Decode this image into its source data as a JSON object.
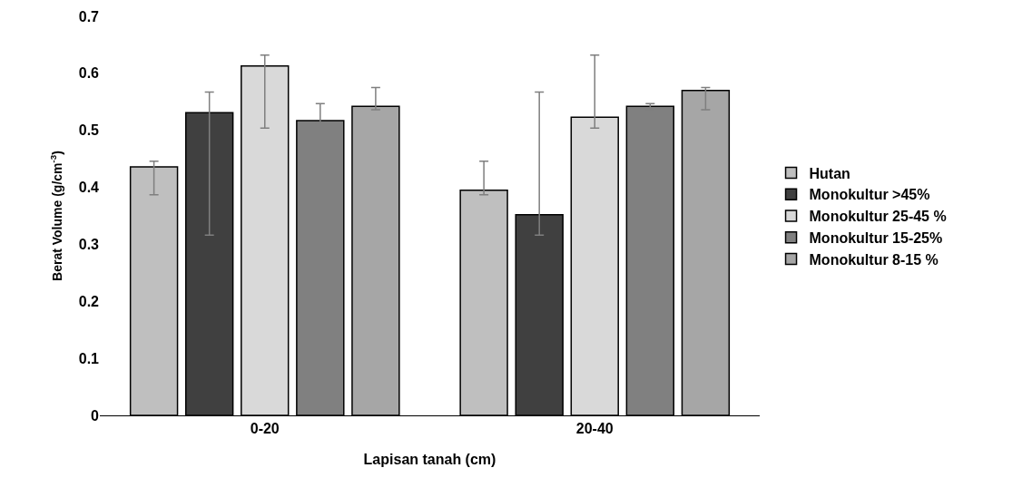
{
  "chart_data": {
    "type": "bar",
    "xlabel": "Lapisan tanah (cm)",
    "ylabel": "Berat Volume (g/cm$^{-3}$)",
    "categories": [
      "0-20",
      "20-40"
    ],
    "series": [
      {
        "name": "Hutan",
        "color": "#bfbfbf",
        "values": [
          0.436,
          0.395
        ],
        "errors": [
          [
            0.387,
            0.446
          ],
          [
            0.387,
            0.446
          ]
        ]
      },
      {
        "name": "Monokultur >45%",
        "color": "#404040",
        "values": [
          0.531,
          0.352
        ],
        "errors": [
          [
            0.316,
            0.567
          ],
          [
            0.316,
            0.567
          ]
        ]
      },
      {
        "name": "Monokultur 25-45 %",
        "color": "#d9d9d9",
        "values": [
          0.613,
          0.523
        ],
        "errors": [
          [
            0.504,
            0.632
          ],
          [
            0.504,
            0.632
          ]
        ]
      },
      {
        "name": "Monokultur 15-25%",
        "color": "#808080",
        "values": [
          0.517,
          0.542
        ],
        "errors": [
          [
            0.513,
            0.547
          ],
          [
            0.536,
            0.547
          ]
        ]
      },
      {
        "name": "Monokultur 8-15 %",
        "color": "#a6a6a6",
        "values": [
          0.542,
          0.57
        ],
        "errors": [
          [
            0.536,
            0.575
          ],
          [
            0.536,
            0.575
          ]
        ]
      }
    ],
    "ylim": [
      0,
      0.7
    ],
    "yticks": [
      0,
      0.1,
      0.2,
      0.3,
      0.4,
      0.5,
      0.6,
      0.7
    ],
    "grid": false,
    "legend": "right"
  }
}
